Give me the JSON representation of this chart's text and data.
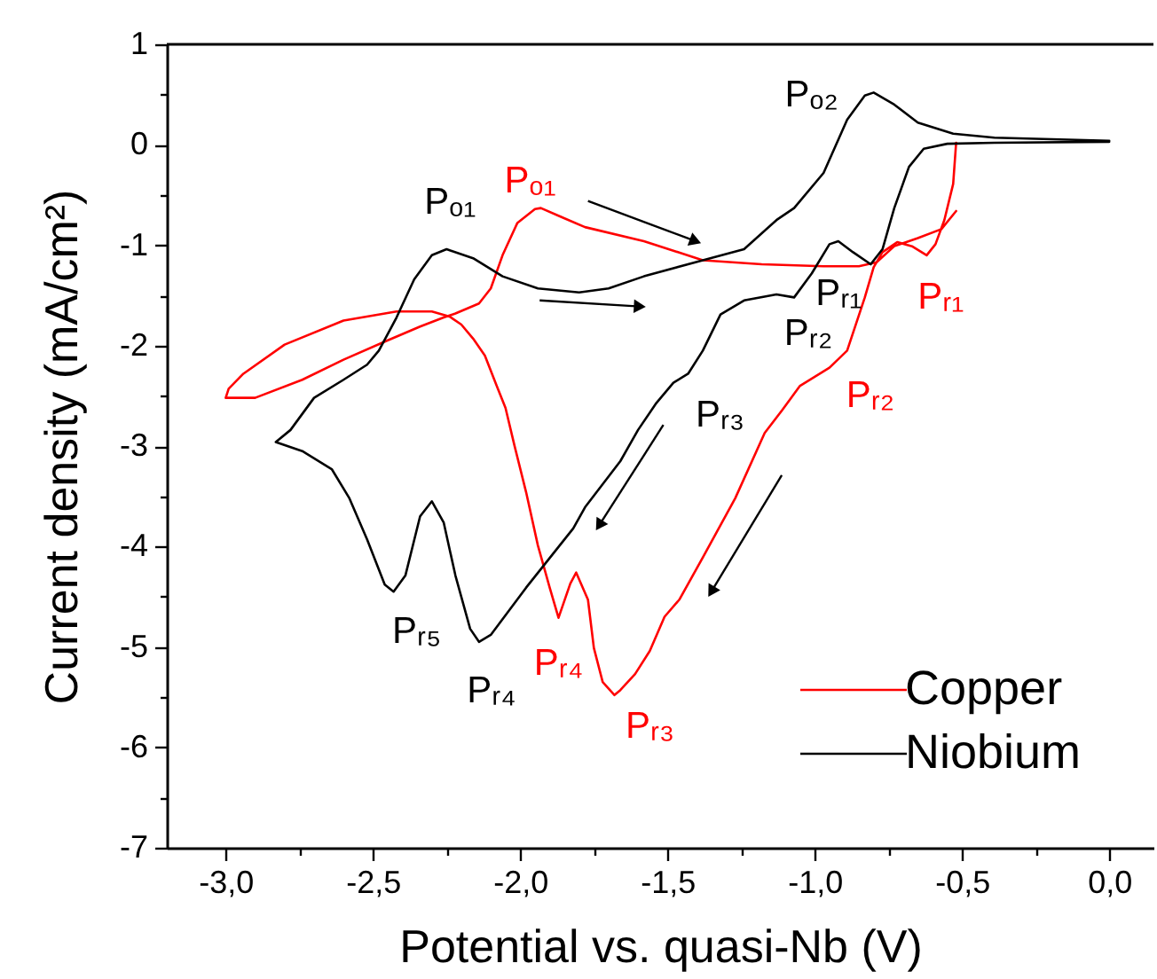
{
  "chart_data": {
    "type": "line",
    "xlabel": "Potential vs. quasi-Nb (V)",
    "ylabel": "Current density (mA/cm²)",
    "xlim": [
      -3.2,
      0.15
    ],
    "ylim": [
      -7,
      1
    ],
    "xticks": [
      {
        "value": -3.0,
        "label": "-3,0"
      },
      {
        "value": -2.75,
        "label": null
      },
      {
        "value": -2.5,
        "label": "-2,5"
      },
      {
        "value": -2.25,
        "label": null
      },
      {
        "value": -2.0,
        "label": "-2,0"
      },
      {
        "value": -1.75,
        "label": null
      },
      {
        "value": -1.5,
        "label": "-1,5"
      },
      {
        "value": -1.25,
        "label": null
      },
      {
        "value": -1.0,
        "label": "-1,0"
      },
      {
        "value": -0.75,
        "label": null
      },
      {
        "value": -0.5,
        "label": "-0,5"
      },
      {
        "value": -0.25,
        "label": null
      },
      {
        "value": 0.0,
        "label": "0,0"
      }
    ],
    "yticks": [
      1,
      {
        "value": 0.5,
        "label": null
      },
      0,
      {
        "value": -0.5,
        "label": null
      },
      -1,
      {
        "value": -1.5,
        "label": null
      },
      -2,
      {
        "value": -2.5,
        "label": null
      },
      -3,
      {
        "value": -3.5,
        "label": null
      },
      -4,
      {
        "value": -4.5,
        "label": null
      },
      -5,
      {
        "value": -5.5,
        "label": null
      },
      -6,
      {
        "value": -6.5,
        "label": null
      },
      -7
    ],
    "grid": false,
    "legend": "bottom right",
    "series": [
      {
        "name": "Copper",
        "color": "#ff0000",
        "x": [
          -0.52,
          -0.53,
          -0.56,
          -0.59,
          -0.62,
          -0.67,
          -0.72,
          -0.77,
          -0.8,
          -0.83,
          -0.89,
          -0.95,
          -1.05,
          -1.11,
          -1.17,
          -1.27,
          -1.38,
          -1.46,
          -1.51,
          -1.56,
          -1.61,
          -1.66,
          -1.68,
          -1.72,
          -1.75,
          -1.77,
          -1.81,
          -1.83,
          -1.87,
          -1.9,
          -1.94,
          -1.98,
          -2.02,
          -2.05,
          -2.08,
          -2.12,
          -2.16,
          -2.2,
          -2.24,
          -2.3,
          -2.42,
          -2.6,
          -2.8,
          -2.94,
          -2.99,
          -3.0,
          -2.9,
          -2.74,
          -2.6,
          -2.46,
          -2.34,
          -2.26,
          -2.22,
          -2.14,
          -2.1,
          -2.06,
          -2.01,
          -1.95,
          -1.93,
          -1.86,
          -1.78,
          -1.58,
          -1.38,
          -1.18,
          -0.97,
          -0.85,
          -0.79,
          -0.73,
          -0.65,
          -0.57,
          -0.52
        ],
        "values": [
          0.02,
          -0.39,
          -0.75,
          -0.99,
          -1.1,
          -1.01,
          -0.97,
          -1.07,
          -1.22,
          -1.52,
          -2.05,
          -2.22,
          -2.4,
          -2.64,
          -2.87,
          -3.52,
          -4.11,
          -4.53,
          -4.7,
          -5.04,
          -5.27,
          -5.43,
          -5.48,
          -5.35,
          -5.01,
          -4.53,
          -4.26,
          -4.37,
          -4.71,
          -4.41,
          -3.99,
          -3.46,
          -2.99,
          -2.62,
          -2.4,
          -2.1,
          -1.93,
          -1.79,
          -1.71,
          -1.66,
          -1.66,
          -1.75,
          -1.99,
          -2.28,
          -2.43,
          -2.52,
          -2.52,
          -2.34,
          -2.14,
          -1.96,
          -1.81,
          -1.72,
          -1.68,
          -1.58,
          -1.43,
          -1.1,
          -0.78,
          -0.64,
          -0.63,
          -0.72,
          -0.82,
          -0.96,
          -1.15,
          -1.19,
          -1.21,
          -1.21,
          -1.17,
          -1.01,
          -0.93,
          -0.84,
          -0.66
        ]
      },
      {
        "name": "Niobium",
        "color": "#000000",
        "x": [
          0.0,
          -0.39,
          -0.55,
          -0.63,
          -0.68,
          -0.73,
          -0.77,
          -0.81,
          -0.87,
          -0.92,
          -0.95,
          -1.01,
          -1.07,
          -1.13,
          -1.24,
          -1.32,
          -1.38,
          -1.43,
          -1.48,
          -1.54,
          -1.6,
          -1.66,
          -1.78,
          -1.82,
          -1.98,
          -2.1,
          -2.14,
          -2.17,
          -2.22,
          -2.26,
          -2.3,
          -2.34,
          -2.39,
          -2.43,
          -2.46,
          -2.52,
          -2.58,
          -2.64,
          -2.74,
          -2.83,
          -2.78,
          -2.7,
          -2.6,
          -2.52,
          -2.48,
          -2.42,
          -2.36,
          -2.3,
          -2.25,
          -2.16,
          -2.06,
          -1.94,
          -1.8,
          -1.7,
          -1.58,
          -1.38,
          -1.24,
          -1.13,
          -1.07,
          -0.97,
          -0.89,
          -0.83,
          -0.8,
          -0.73,
          -0.65,
          -0.53,
          -0.39,
          0.0
        ],
        "values": [
          0.03,
          0.02,
          0.01,
          -0.04,
          -0.22,
          -0.63,
          -1.04,
          -1.19,
          -1.07,
          -0.96,
          -0.99,
          -1.28,
          -1.52,
          -1.49,
          -1.55,
          -1.69,
          -2.05,
          -2.28,
          -2.37,
          -2.58,
          -2.84,
          -3.15,
          -3.61,
          -3.82,
          -4.41,
          -4.88,
          -4.95,
          -4.82,
          -4.29,
          -3.76,
          -3.55,
          -3.7,
          -4.29,
          -4.45,
          -4.38,
          -3.93,
          -3.52,
          -3.23,
          -3.05,
          -2.96,
          -2.84,
          -2.52,
          -2.34,
          -2.19,
          -2.05,
          -1.72,
          -1.34,
          -1.1,
          -1.04,
          -1.13,
          -1.31,
          -1.43,
          -1.47,
          -1.43,
          -1.31,
          -1.15,
          -1.04,
          -0.75,
          -0.63,
          -0.28,
          0.25,
          0.49,
          0.52,
          0.4,
          0.22,
          0.11,
          0.07,
          0.04
        ]
      }
    ],
    "annotations": [
      {
        "text": "Pₒ₂",
        "x": -0.8,
        "y": 0.52
      },
      {
        "text": "Pₒ₁",
        "x": -2.25,
        "y": -1.04
      },
      {
        "text": "Pₒ₁",
        "x": -1.93,
        "y": -0.63
      },
      {
        "text": "Pᵣ₁",
        "x": -0.81,
        "y": -1.19
      },
      {
        "text": "Pᵣ₁",
        "x": -0.62,
        "y": -1.1
      },
      {
        "text": "Pᵣ₂",
        "x": -1.07,
        "y": -1.52
      },
      {
        "text": "Pᵣ₂",
        "x": -0.95,
        "y": -2.22
      },
      {
        "text": "Pᵣ₃",
        "x": -1.43,
        "y": -2.28
      },
      {
        "text": "Pᵣ₅",
        "x": -2.43,
        "y": -4.45
      },
      {
        "text": "Pᵣ₄",
        "x": -2.14,
        "y": -4.95
      },
      {
        "text": "Pᵣ₄",
        "x": -1.87,
        "y": -4.71
      },
      {
        "text": "Pᵣ₃",
        "x": -1.68,
        "y": -5.48
      }
    ]
  }
}
